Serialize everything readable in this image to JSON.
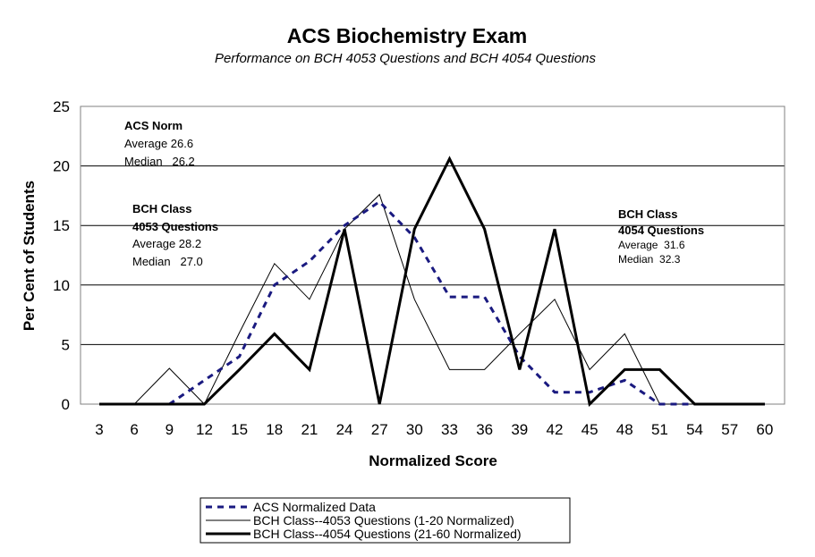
{
  "chart_data": {
    "type": "line",
    "title": "ACS Biochemistry Exam",
    "subtitle": "Performance on BCH 4053 Questions and BCH 4054 Questions",
    "xlabel": "Normalized Score",
    "ylabel": "Per Cent of Students",
    "xlim": [
      3,
      60
    ],
    "ylim": [
      0,
      25
    ],
    "y_ticks": [
      0,
      5,
      10,
      15,
      20,
      25
    ],
    "x": [
      3,
      6,
      9,
      12,
      15,
      18,
      21,
      24,
      27,
      30,
      33,
      36,
      39,
      42,
      45,
      48,
      51,
      54,
      57,
      60
    ],
    "grid": "horizontal",
    "legend": "bottom",
    "series": [
      {
        "name": "ACS Normalized Data",
        "style": "dashed",
        "color": "#1a1a80",
        "values": [
          0,
          0,
          0,
          2,
          4,
          10,
          12,
          15,
          17,
          14,
          9,
          9,
          4,
          1,
          1,
          2,
          0,
          0,
          0,
          0
        ]
      },
      {
        "name": "BCH Class--4053 Questions (1-20 Normalized)",
        "style": "thin",
        "color": "#000000",
        "values": [
          0,
          0,
          3,
          0,
          6,
          11.8,
          8.8,
          14.7,
          17.6,
          8.8,
          2.9,
          2.9,
          5.9,
          8.8,
          2.9,
          5.9,
          0,
          0,
          0,
          0
        ]
      },
      {
        "name": "BCH Class--4054 Questions (21-60 Normalized)",
        "style": "thick",
        "color": "#000000",
        "values": [
          0,
          0,
          0,
          0,
          2.9,
          5.9,
          2.9,
          14.7,
          0,
          14.7,
          20.6,
          14.7,
          2.9,
          14.7,
          0,
          2.9,
          2.9,
          0,
          0,
          0
        ]
      }
    ],
    "annotations": {
      "acs": {
        "head": "ACS Norm",
        "average": "Average 26.6",
        "median": "Median   26.2"
      },
      "c4053": {
        "head1": "BCH Class",
        "head2": "4053 Questions",
        "average": "Average 28.2",
        "median": "Median   27.0"
      },
      "c4054": {
        "head1": "BCH Class",
        "head2": "4054 Questions",
        "average": "Average  31.6",
        "median": "Median  32.3"
      }
    }
  }
}
